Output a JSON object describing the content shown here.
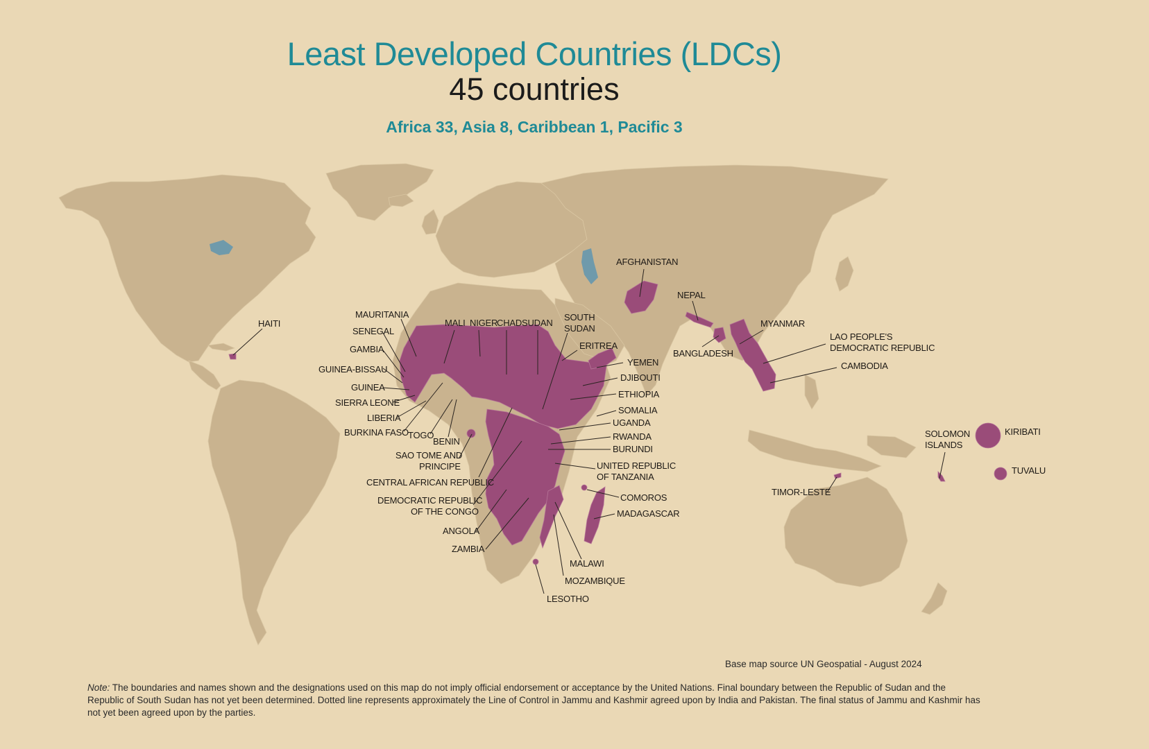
{
  "title": "Least Developed Countries (LDCs)",
  "subtitle": "45 countries",
  "breakdown": "Africa 33, Asia 8, Caribbean 1, Pacific 3",
  "source": "Base map source UN Geospatial - August 2024",
  "note_label": "Note:",
  "note_text": "The boundaries and names shown and the designations used on this map do not imply official endorsement or acceptance by the United Nations. Final boundary between the Republic of Sudan and the Republic of South Sudan has not yet been determined. Dotted line represents approximately the Line of Control in Jammu and Kashmir agreed upon by India and Pakistan. The final status of Jammu and Kashmir has not yet been agreed upon by the parties.",
  "colors": {
    "background": "#ead8b5",
    "land": "#c9b38f",
    "ldc": "#9a4c79",
    "water": "#6f9aab",
    "title": "#1f8a96"
  },
  "labels": {
    "haiti": "HAITI",
    "mauritania": "MAURITANIA",
    "senegal": "SENEGAL",
    "gambia": "GAMBIA",
    "guinea_bissau": "GUINEA-BISSAU",
    "guinea": "GUINEA",
    "sierra_leone": "SIERRA LEONE",
    "liberia": "LIBERIA",
    "burkina_faso": "BURKINA FASO",
    "togo": "TOGO",
    "benin": "BENIN",
    "mali": "MALI",
    "niger": "NIGER",
    "chad": "CHAD",
    "sudan": "SUDAN",
    "south_sudan": [
      "SOUTH",
      "SUDAN"
    ],
    "eritrea": "ERITREA",
    "yemen": "YEMEN",
    "djibouti": "DJIBOUTI",
    "ethiopia": "ETHIOPIA",
    "somalia": "SOMALIA",
    "uganda": "UGANDA",
    "rwanda": "RWANDA",
    "burundi": "BURUNDI",
    "tanzania": [
      "UNITED REPUBLIC",
      "OF TANZANIA"
    ],
    "comoros": "COMOROS",
    "madagascar": "MADAGASCAR",
    "malawi": "MALAWI",
    "mozambique": "MOZAMBIQUE",
    "lesotho": "LESOTHO",
    "zambia": "ZAMBIA",
    "angola": "ANGOLA",
    "drc": [
      "DEMOCRATIC REPUBLIC",
      "OF THE CONGO"
    ],
    "car": "CENTRAL AFRICAN REPUBLIC",
    "sao_tome": [
      "SAO TOME AND",
      "PRINCIPE"
    ],
    "afghanistan": "AFGHANISTAN",
    "nepal": "NEPAL",
    "bangladesh": "BANGLADESH",
    "myanmar": "MYANMAR",
    "lao": [
      "LAO PEOPLE'S",
      "DEMOCRATIC REPUBLIC"
    ],
    "cambodia": "CAMBODIA",
    "solomon": [
      "SOLOMON",
      "ISLANDS"
    ],
    "kiribati": "KIRIBATI",
    "tuvalu": "TUVALU",
    "timor_leste": "TIMOR-LESTE"
  }
}
